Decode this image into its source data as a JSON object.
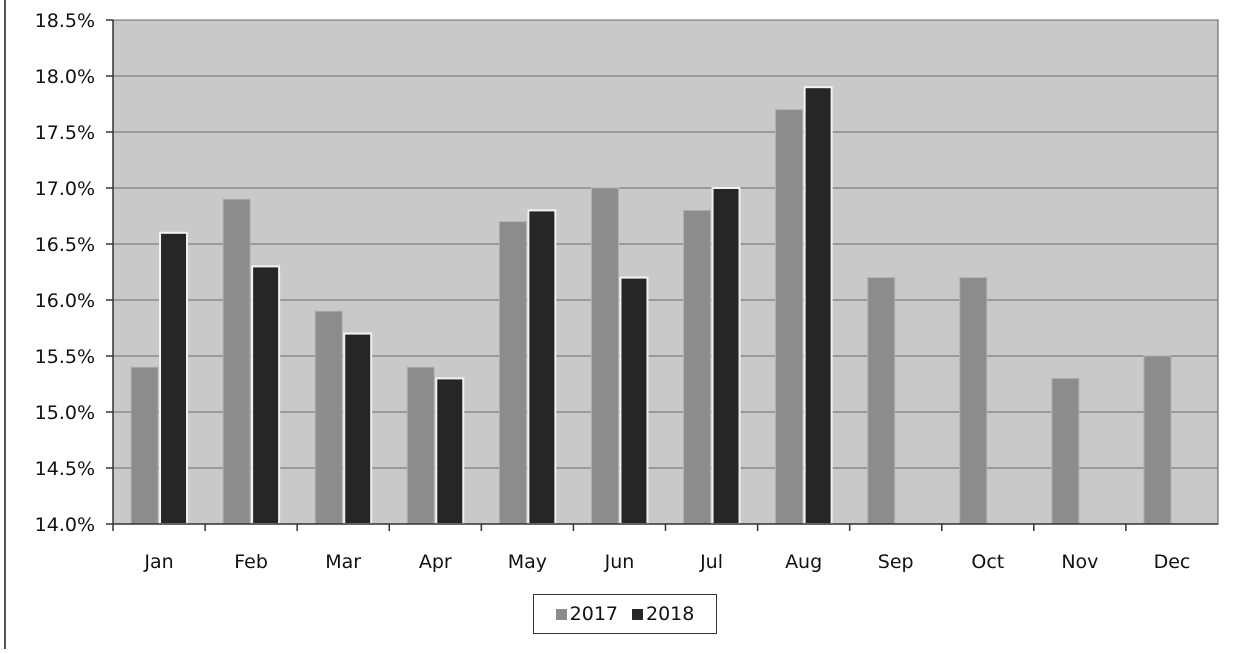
{
  "chart_data": {
    "type": "bar",
    "title": "",
    "xlabel": "",
    "ylabel": "",
    "categories": [
      "Jan",
      "Feb",
      "Mar",
      "Apr",
      "May",
      "Jun",
      "Jul",
      "Aug",
      "Sep",
      "Oct",
      "Nov",
      "Dec"
    ],
    "series": [
      {
        "name": "2017",
        "color": "#8c8c8c",
        "values": [
          15.4,
          16.9,
          15.9,
          15.4,
          16.7,
          17.0,
          16.8,
          17.7,
          16.2,
          16.2,
          15.3,
          15.5
        ]
      },
      {
        "name": "2018",
        "color": "#262626",
        "values": [
          16.6,
          16.3,
          15.7,
          15.3,
          16.8,
          16.2,
          17.0,
          17.9,
          null,
          null,
          null,
          null
        ]
      }
    ],
    "ylim": [
      14.0,
      18.5
    ],
    "yticks": [
      "14.0%",
      "14.5%",
      "15.0%",
      "15.5%",
      "16.0%",
      "16.5%",
      "17.0%",
      "17.5%",
      "18.0%",
      "18.5%"
    ],
    "grid": true,
    "plot_background": "#c9c9c9",
    "legend_position": "bottom"
  }
}
